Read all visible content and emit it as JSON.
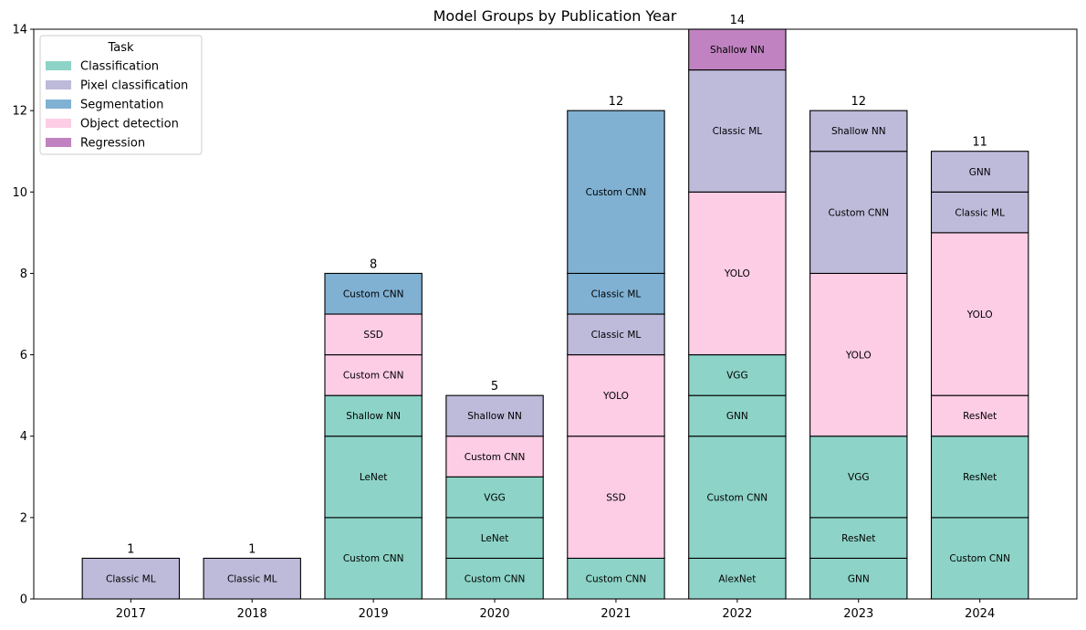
{
  "chart_data": {
    "type": "bar",
    "stacked": true,
    "title": "Model Groups by Publication Year",
    "xlabel": "",
    "ylabel": "",
    "ylim": [
      0,
      14
    ],
    "yticks": [
      0,
      2,
      4,
      6,
      8,
      10,
      12,
      14
    ],
    "grid": false,
    "legend": {
      "title": "Task",
      "placement": "top-left",
      "entries": [
        {
          "label": "Classification",
          "color": "#8dd3c7"
        },
        {
          "label": "Pixel classification",
          "color": "#bebada"
        },
        {
          "label": "Segmentation",
          "color": "#80b1d3"
        },
        {
          "label": "Object detection",
          "color": "#fccde5"
        },
        {
          "label": "Regression",
          "color": "#c082c0"
        }
      ]
    },
    "categories": [
      "2017",
      "2018",
      "2019",
      "2020",
      "2021",
      "2022",
      "2023",
      "2024"
    ],
    "bars": [
      {
        "year": "2017",
        "total": "1",
        "segments": [
          {
            "label": "Classic ML",
            "task": "Pixel classification",
            "value": 1
          }
        ]
      },
      {
        "year": "2018",
        "total": "1",
        "segments": [
          {
            "label": "Classic ML",
            "task": "Pixel classification",
            "value": 1
          }
        ]
      },
      {
        "year": "2019",
        "total": "8",
        "segments": [
          {
            "label": "Custom CNN",
            "task": "Classification",
            "value": 2
          },
          {
            "label": "LeNet",
            "task": "Classification",
            "value": 2
          },
          {
            "label": "Shallow NN",
            "task": "Classification",
            "value": 1
          },
          {
            "label": "Custom CNN",
            "task": "Object detection",
            "value": 1
          },
          {
            "label": "SSD",
            "task": "Object detection",
            "value": 1
          },
          {
            "label": "Custom CNN",
            "task": "Segmentation",
            "value": 1
          }
        ]
      },
      {
        "year": "2020",
        "total": "5",
        "segments": [
          {
            "label": "Custom CNN",
            "task": "Classification",
            "value": 1
          },
          {
            "label": "LeNet",
            "task": "Classification",
            "value": 1
          },
          {
            "label": "VGG",
            "task": "Classification",
            "value": 1
          },
          {
            "label": "Custom CNN",
            "task": "Object detection",
            "value": 1
          },
          {
            "label": "Shallow NN",
            "task": "Pixel classification",
            "value": 1
          }
        ]
      },
      {
        "year": "2021",
        "total": "12",
        "segments": [
          {
            "label": "Custom CNN",
            "task": "Classification",
            "value": 1
          },
          {
            "label": "SSD",
            "task": "Object detection",
            "value": 3
          },
          {
            "label": "YOLO",
            "task": "Object detection",
            "value": 2
          },
          {
            "label": "Classic ML",
            "task": "Pixel classification",
            "value": 1
          },
          {
            "label": "Classic ML",
            "task": "Segmentation",
            "value": 1
          },
          {
            "label": "Custom CNN",
            "task": "Segmentation",
            "value": 4
          }
        ]
      },
      {
        "year": "2022",
        "total": "14",
        "segments": [
          {
            "label": "AlexNet",
            "task": "Classification",
            "value": 1
          },
          {
            "label": "Custom CNN",
            "task": "Classification",
            "value": 3
          },
          {
            "label": "GNN",
            "task": "Classification",
            "value": 1
          },
          {
            "label": "VGG",
            "task": "Classification",
            "value": 1
          },
          {
            "label": "YOLO",
            "task": "Object detection",
            "value": 4
          },
          {
            "label": "Classic ML",
            "task": "Pixel classification",
            "value": 3
          },
          {
            "label": "Shallow NN",
            "task": "Regression",
            "value": 1
          }
        ]
      },
      {
        "year": "2023",
        "total": "12",
        "segments": [
          {
            "label": "GNN",
            "task": "Classification",
            "value": 1
          },
          {
            "label": "ResNet",
            "task": "Classification",
            "value": 1
          },
          {
            "label": "VGG",
            "task": "Classification",
            "value": 2
          },
          {
            "label": "YOLO",
            "task": "Object detection",
            "value": 4
          },
          {
            "label": "Custom CNN",
            "task": "Pixel classification",
            "value": 3
          },
          {
            "label": "Shallow NN",
            "task": "Pixel classification",
            "value": 1
          }
        ]
      },
      {
        "year": "2024",
        "total": "11",
        "segments": [
          {
            "label": "Custom CNN",
            "task": "Classification",
            "value": 2
          },
          {
            "label": "ResNet",
            "task": "Classification",
            "value": 2
          },
          {
            "label": "ResNet",
            "task": "Object detection",
            "value": 1
          },
          {
            "label": "YOLO",
            "task": "Object detection",
            "value": 4
          },
          {
            "label": "Classic ML",
            "task": "Pixel classification",
            "value": 1
          },
          {
            "label": "GNN",
            "task": "Pixel classification",
            "value": 1
          }
        ]
      }
    ]
  }
}
